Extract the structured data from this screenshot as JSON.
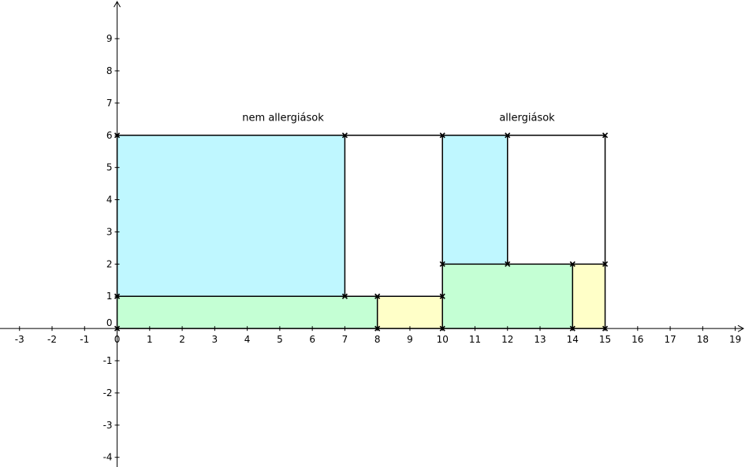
{
  "chart_data": {
    "type": "diagram",
    "xlim": [
      -3.6,
      19.3
    ],
    "ylim": [
      -4.3,
      10.2
    ],
    "x_ticks": [
      -3,
      -2,
      -1,
      0,
      1,
      2,
      3,
      4,
      5,
      6,
      7,
      8,
      9,
      10,
      11,
      12,
      13,
      14,
      15,
      16,
      17,
      18,
      19
    ],
    "y_ticks": [
      -4,
      -3,
      -2,
      -1,
      0,
      1,
      2,
      3,
      4,
      5,
      6,
      7,
      8,
      9
    ],
    "colors": {
      "cyan": "#bff7ff",
      "green": "#c4ffd4",
      "yellow": "#ffffc8",
      "white": "#ffffff"
    },
    "regions": [
      {
        "id": "na-cyan",
        "x0": 0,
        "y0": 1,
        "x1": 7,
        "y1": 6,
        "fill": "cyan"
      },
      {
        "id": "na-green",
        "x0": 0,
        "y0": 0,
        "x1": 8,
        "y1": 1,
        "fill": "green"
      },
      {
        "id": "na-yellow",
        "x0": 8,
        "y0": 0,
        "x1": 10,
        "y1": 1,
        "fill": "yellow"
      },
      {
        "id": "na-white",
        "x0": 7,
        "y0": 1,
        "x1": 10,
        "y1": 6,
        "fill": "white"
      },
      {
        "id": "a-cyan",
        "x0": 10,
        "y0": 2,
        "x1": 12,
        "y1": 6,
        "fill": "cyan"
      },
      {
        "id": "a-green",
        "x0": 10,
        "y0": 0,
        "x1": 14,
        "y1": 2,
        "fill": "green"
      },
      {
        "id": "a-yellow",
        "x0": 14,
        "y0": 0,
        "x1": 15,
        "y1": 2,
        "fill": "yellow"
      },
      {
        "id": "a-white",
        "x0": 12,
        "y0": 2,
        "x1": 15,
        "y1": 6,
        "fill": "white"
      }
    ],
    "edges": [
      [
        0,
        0,
        0,
        6
      ],
      [
        0,
        6,
        10,
        6
      ],
      [
        10,
        0,
        10,
        6
      ],
      [
        0,
        0,
        10,
        0
      ],
      [
        0,
        1,
        10,
        1
      ],
      [
        7,
        1,
        7,
        6
      ],
      [
        8,
        0,
        8,
        1
      ],
      [
        10,
        6,
        15,
        6
      ],
      [
        15,
        0,
        15,
        6
      ],
      [
        10,
        0,
        15,
        0
      ],
      [
        10,
        2,
        15,
        2
      ],
      [
        12,
        2,
        12,
        6
      ],
      [
        14,
        0,
        14,
        2
      ]
    ],
    "points": [
      [
        0,
        0
      ],
      [
        0,
        1
      ],
      [
        0,
        6
      ],
      [
        7,
        1
      ],
      [
        7,
        6
      ],
      [
        8,
        0
      ],
      [
        8,
        1
      ],
      [
        10,
        0
      ],
      [
        10,
        1
      ],
      [
        10,
        2
      ],
      [
        10,
        6
      ],
      [
        12,
        2
      ],
      [
        12,
        6
      ],
      [
        14,
        0
      ],
      [
        14,
        2
      ],
      [
        15,
        0
      ],
      [
        15,
        2
      ],
      [
        15,
        6
      ]
    ],
    "labels": [
      {
        "id": "label-nem-allergiasok",
        "text": "nem allergiások",
        "x": 5.1,
        "y": 6.45
      },
      {
        "id": "label-allergiasok",
        "text": "allergiások",
        "x": 12.6,
        "y": 6.45
      }
    ]
  }
}
